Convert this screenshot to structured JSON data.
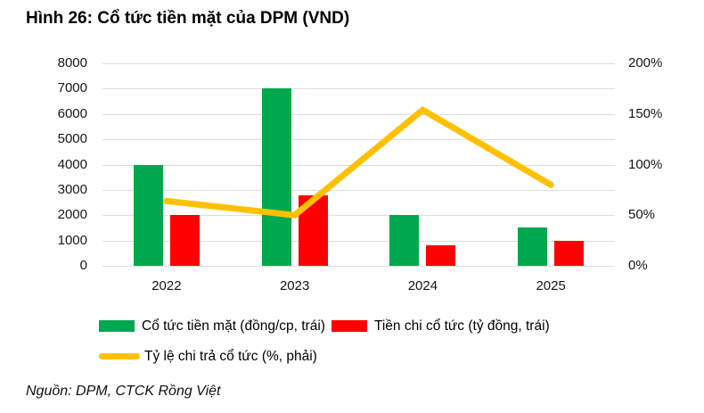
{
  "title": "Hình 26: Cổ tức tiền mặt của DPM (VND)",
  "source": "Nguồn: DPM, CTCK Rồng Việt",
  "chart_data": {
    "type": "combo-bar-line",
    "categories": [
      "2022",
      "2023",
      "2024",
      "2025"
    ],
    "series": [
      {
        "name": "Cổ tức tiền mặt (đồng/cp, trái)",
        "type": "bar",
        "axis": "left",
        "color": "#00A84F",
        "values": [
          4000,
          7000,
          2000,
          1500
        ]
      },
      {
        "name": "Tiền chi cổ tức (tỷ đồng, trái)",
        "type": "bar",
        "axis": "left",
        "color": "#FF0000",
        "values": [
          2000,
          2800,
          800,
          1000
        ]
      },
      {
        "name": "Tỷ lệ chi trả cổ tức (%, phải)",
        "type": "line",
        "axis": "right",
        "color": "#FFC000",
        "values": [
          64,
          50,
          154,
          80
        ]
      }
    ],
    "left_axis": {
      "min": 0,
      "max": 8000,
      "step": 1000,
      "tick_labels": [
        "0",
        "1000",
        "2000",
        "3000",
        "4000",
        "5000",
        "6000",
        "7000",
        "8000"
      ]
    },
    "right_axis": {
      "min": 0,
      "max": 200,
      "step": 50,
      "tick_labels": [
        "0%",
        "50%",
        "100%",
        "150%",
        "200%"
      ]
    },
    "grid": true,
    "legend_position": "bottom",
    "gridline_color": "#dedede"
  }
}
